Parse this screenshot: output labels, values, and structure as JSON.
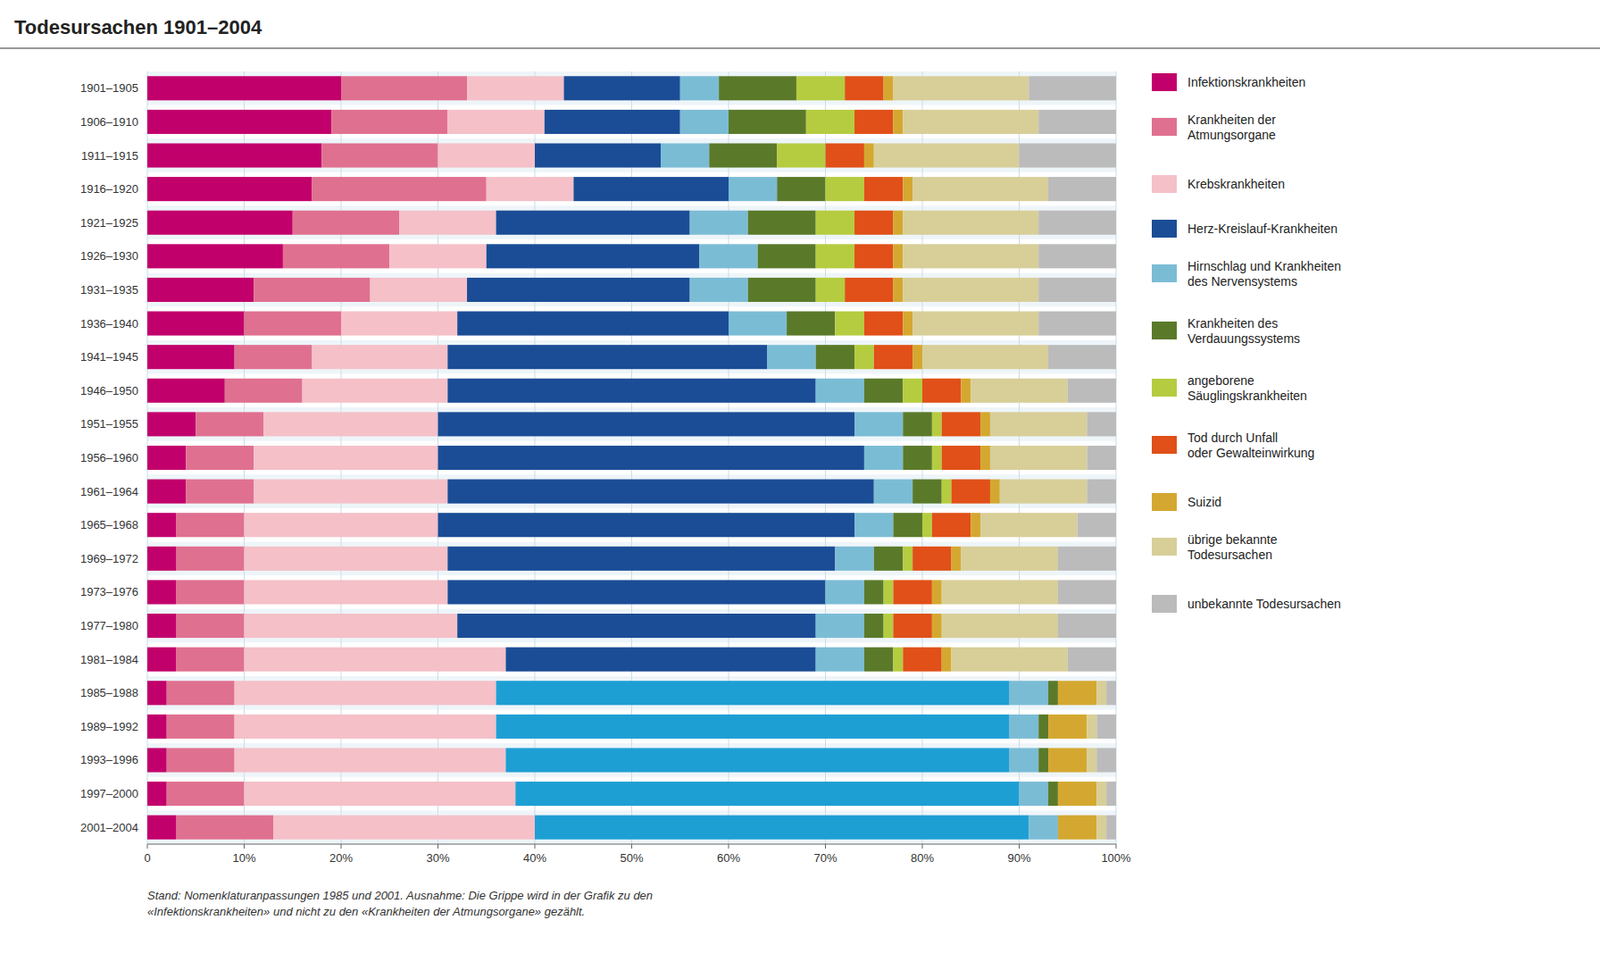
{
  "chart_data": {
    "type": "bar",
    "orientation": "horizontal",
    "stacked": true,
    "grid": true,
    "legend": "right",
    "title": "Todesursachen 1901–2004",
    "annotations": [
      "Stand: Nomenklaturanpassungen 1985 und 2001. Ausnahme: Die Grippe wird in der Grafik zu den\n«Infektionskrankheiten» und nicht zu den «Krankheiten der Atmungsorgane» gezählt."
    ],
    "categories": [
      "1901–1905",
      "1906–1910",
      "1911–1915",
      "1916–1920",
      "1921–1925",
      "1926–1930",
      "1931–1935",
      "1936–1940",
      "1941–1945",
      "1946–1950",
      "1951–1955",
      "1956–1960",
      "1961–1964",
      "1965–1968",
      "1969–1972",
      "1973–1976",
      "1977–1980",
      "1981–1984",
      "1985–1988",
      "1989–1992",
      "1993–1996",
      "1997–2000",
      "2001–2004"
    ],
    "xlim": [
      0,
      100
    ],
    "xticks": [
      0,
      {
        "value": 10,
        "label": "10%"
      },
      {
        "value": 20,
        "label": "20%"
      },
      {
        "value": 30,
        "label": "30%"
      },
      {
        "value": 40,
        "label": "40%"
      },
      {
        "value": 50,
        "label": "50%"
      },
      {
        "value": 60,
        "label": "60%"
      },
      {
        "value": 70,
        "label": "70%"
      },
      {
        "value": 80,
        "label": "80%"
      },
      {
        "value": 90,
        "label": "90%"
      },
      {
        "value": 100,
        "label": "100%"
      }
    ],
    "series": [
      {
        "name": "Infektionskrankheiten",
        "color": "#C2006B",
        "values": [
          20,
          19,
          18,
          17,
          15,
          14,
          11,
          10,
          9,
          8,
          5,
          4,
          4,
          3,
          3,
          3,
          3,
          3,
          2,
          2,
          2,
          2,
          3
        ]
      },
      {
        "name": "Krankheiten der\nAtmungsorgane",
        "color": "#E07090",
        "values": [
          13,
          12,
          12,
          18,
          11,
          11,
          12,
          10,
          8,
          8,
          7,
          7,
          7,
          7,
          7,
          7,
          7,
          7,
          7,
          7,
          7,
          8,
          10
        ]
      },
      {
        "name": "Krebskrankheiten",
        "color": "#F5C0C8",
        "values": [
          10,
          10,
          10,
          9,
          10,
          10,
          10,
          12,
          14,
          15,
          18,
          19,
          20,
          20,
          21,
          21,
          22,
          27,
          27,
          27,
          28,
          28,
          27
        ]
      },
      {
        "name": "Herz-Kreislauf-Krankheiten",
        "color": "#1B4D96",
        "colors": [
          "#1B4D96",
          "#1B4D96",
          "#1B4D96",
          "#1B4D96",
          "#1B4D96",
          "#1B4D96",
          "#1B4D96",
          "#1B4D96",
          "#1B4D96",
          "#1B4D96",
          "#1B4D96",
          "#1B4D96",
          "#1B4D96",
          "#1B4D96",
          "#1B4D96",
          "#1B4D96",
          "#1B4D96",
          "#1B4D96",
          "#1E9FD4",
          "#1E9FD4",
          "#1E9FD4",
          "#1E9FD4",
          "#1E9FD4"
        ],
        "values": [
          12,
          14,
          13,
          16,
          20,
          22,
          23,
          28,
          33,
          38,
          43,
          44,
          44,
          43,
          40,
          39,
          37,
          32,
          53,
          53,
          52,
          52,
          51
        ]
      },
      {
        "name": "Hirnschlag und Krankheiten\ndes Nervensystems",
        "color": "#7BBCD5",
        "values": [
          4,
          5,
          5,
          5,
          6,
          6,
          6,
          6,
          5,
          5,
          5,
          4,
          4,
          4,
          4,
          4,
          5,
          5,
          4,
          3,
          3,
          3,
          3
        ]
      },
      {
        "name": "Krankheiten des\nVerdauungssystems",
        "color": "#5A7A2A",
        "values": [
          8,
          8,
          7,
          5,
          7,
          6,
          7,
          5,
          4,
          4,
          3,
          3,
          3,
          3,
          3,
          2,
          2,
          3,
          1,
          1,
          1,
          1,
          0
        ]
      },
      {
        "name": "angeborene\nSäuglingskrankheiten",
        "color": "#B5CC40",
        "values": [
          5,
          5,
          5,
          4,
          4,
          4,
          3,
          3,
          2,
          2,
          1,
          1,
          1,
          1,
          1,
          1,
          1,
          1,
          0,
          0,
          0,
          0,
          0
        ]
      },
      {
        "name": "Tod durch Unfall\noder Gewalteinwirkung",
        "color": "#E05018",
        "values": [
          4,
          4,
          4,
          4,
          4,
          4,
          5,
          4,
          4,
          4,
          4,
          4,
          4,
          4,
          4,
          4,
          4,
          4,
          0,
          0,
          0,
          0,
          0
        ]
      },
      {
        "name": "Suizid",
        "color": "#D4A830",
        "values": [
          1,
          1,
          1,
          1,
          1,
          1,
          1,
          1,
          1,
          1,
          1,
          1,
          1,
          1,
          1,
          1,
          1,
          1,
          4,
          4,
          4,
          4,
          4
        ]
      },
      {
        "name": "übrige bekannte\nTodesursachen",
        "color": "#D8CE98",
        "values": [
          14,
          14,
          15,
          14,
          14,
          14,
          14,
          13,
          13,
          10,
          10,
          10,
          9,
          10,
          10,
          12,
          12,
          12,
          1,
          1,
          1,
          1,
          1
        ]
      },
      {
        "name": "unbekannte Todesursachen",
        "color": "#BBBBBB",
        "values": [
          9,
          8,
          10,
          7,
          8,
          8,
          8,
          8,
          7,
          5,
          3,
          3,
          3,
          4,
          6,
          6,
          6,
          5,
          1,
          2,
          2,
          1,
          1
        ]
      }
    ]
  }
}
